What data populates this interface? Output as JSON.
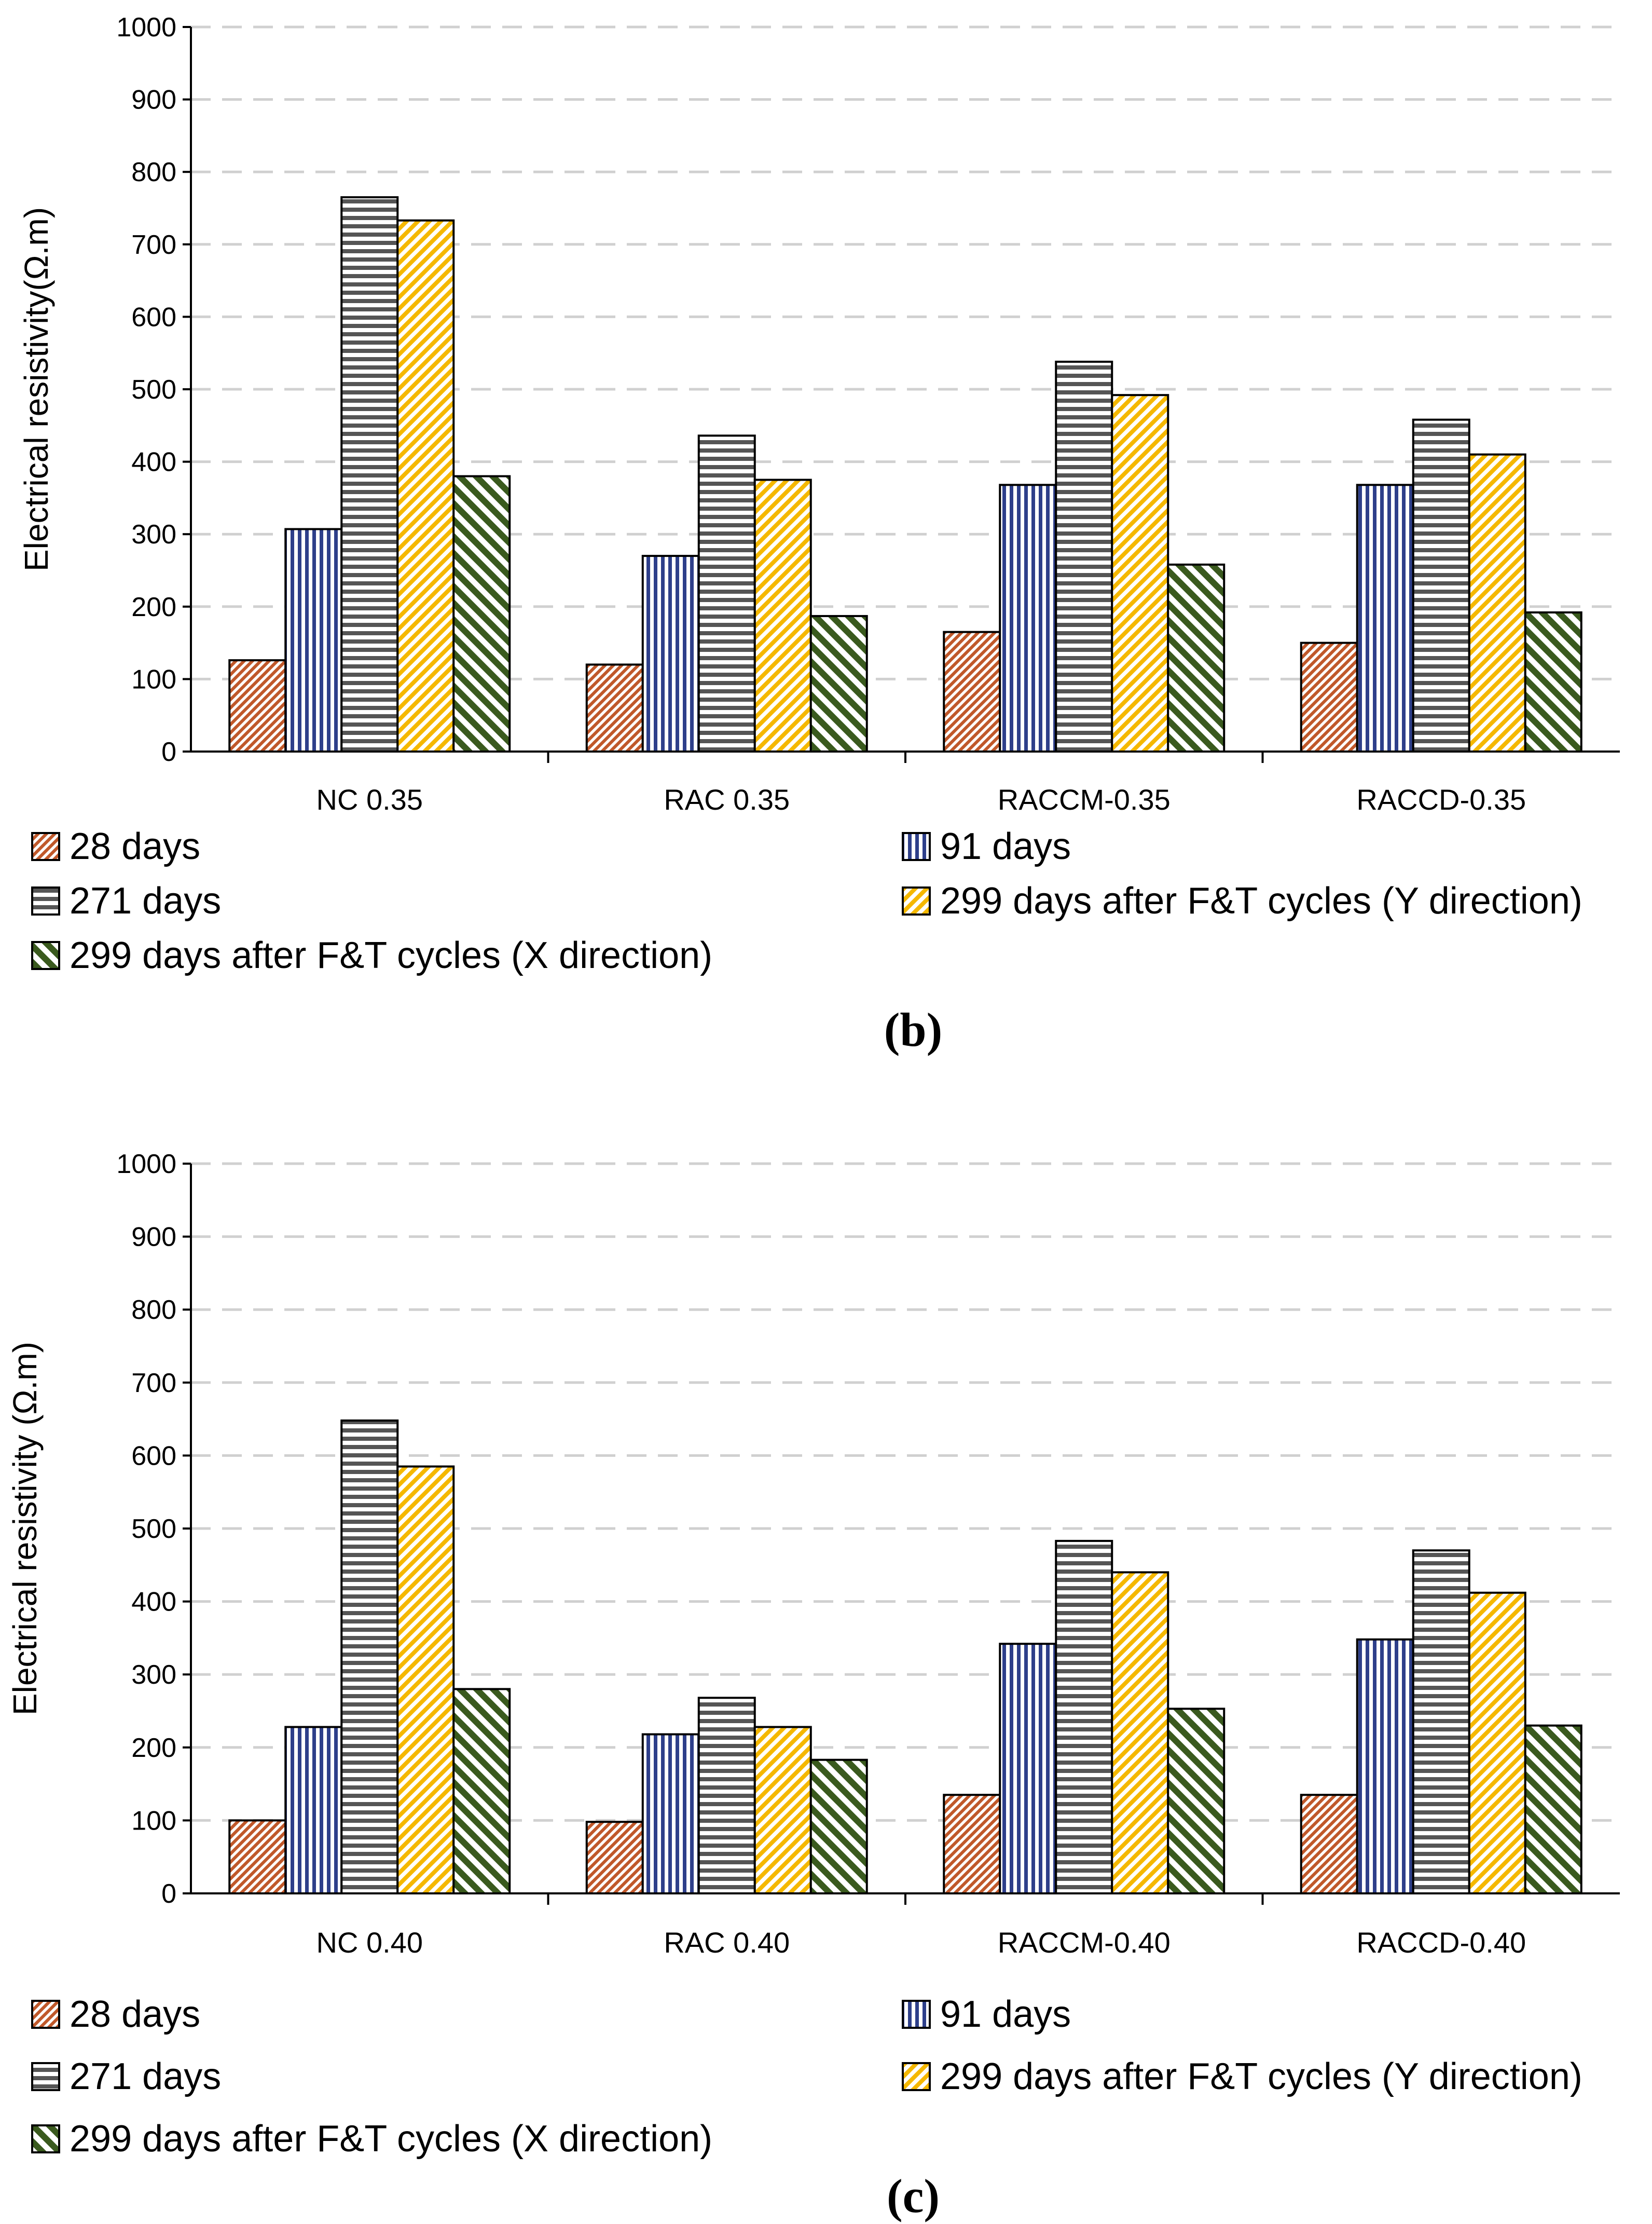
{
  "colors": {
    "s28": "#c0582a",
    "s91": "#2e3f8a",
    "s271": "#555555",
    "s299y": "#f5b800",
    "s299x": "#3a5a1e",
    "grid": "#d0d0d0"
  },
  "legend_labels": [
    "28 days",
    "91 days",
    "271 days",
    "299 days after F&T cycles (Y direction)",
    "299 days after F&T cycles (X direction)"
  ],
  "chart_data": [
    {
      "type": "bar",
      "panel_label": "(b)",
      "ylabel": "Electrical resistivity(Ω.m)",
      "xlabel": "",
      "ylim": [
        0,
        1000
      ],
      "yticks": [
        "0",
        "100",
        "200",
        "300",
        "400",
        "500",
        "600",
        "700",
        "800",
        "900",
        "1000"
      ],
      "grid": true,
      "categories": [
        "NC 0.35",
        "RAC 0.35",
        "RACCM-0.35",
        "RACCD-0.35"
      ],
      "series": [
        {
          "name": "28 days",
          "values": [
            126,
            120,
            165,
            150
          ]
        },
        {
          "name": "91 days",
          "values": [
            307,
            270,
            368,
            368
          ]
        },
        {
          "name": "271 days",
          "values": [
            765,
            436,
            538,
            458
          ]
        },
        {
          "name": "299 days after F&T cycles (Y direction)",
          "values": [
            733,
            375,
            492,
            410
          ]
        },
        {
          "name": "299 days after F&T cycles (X direction)",
          "values": [
            380,
            187,
            258,
            192
          ]
        }
      ]
    },
    {
      "type": "bar",
      "panel_label": "(c)",
      "ylabel": "Electrical resistivity (Ω.m)",
      "xlabel": "",
      "ylim": [
        0,
        1000
      ],
      "yticks": [
        "0",
        "100",
        "200",
        "300",
        "400",
        "500",
        "600",
        "700",
        "800",
        "900",
        "1000"
      ],
      "grid": true,
      "categories": [
        "NC 0.40",
        "RAC 0.40",
        "RACCM-0.40",
        "RACCD-0.40"
      ],
      "series": [
        {
          "name": "28 days",
          "values": [
            100,
            98,
            135,
            135
          ]
        },
        {
          "name": "91 days",
          "values": [
            228,
            218,
            342,
            348
          ]
        },
        {
          "name": "271 days",
          "values": [
            648,
            268,
            483,
            470
          ]
        },
        {
          "name": "299 days after F&T cycles (Y direction)",
          "values": [
            585,
            228,
            440,
            412
          ]
        },
        {
          "name": "299 days after F&T cycles (X direction)",
          "values": [
            280,
            183,
            253,
            230
          ]
        }
      ]
    }
  ]
}
